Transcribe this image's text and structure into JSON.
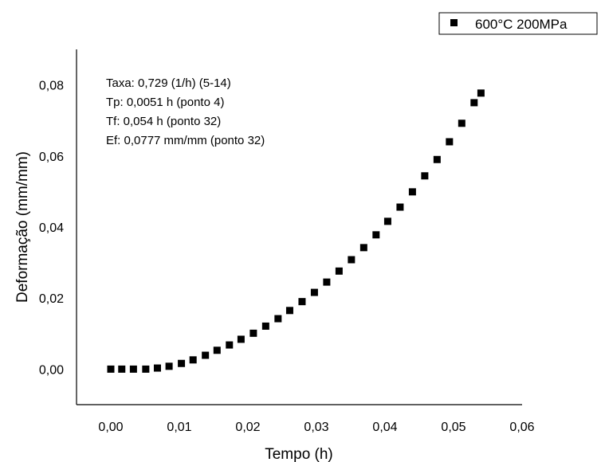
{
  "chart_data": {
    "type": "scatter",
    "title": "",
    "xlabel": "Tempo (h)",
    "ylabel": "Deformação (mm/mm)",
    "xlim": [
      -0.005,
      0.06
    ],
    "ylim": [
      -0.01,
      0.09
    ],
    "xticks": [
      0.0,
      0.01,
      0.02,
      0.03,
      0.04,
      0.05,
      0.06
    ],
    "xtick_labels": [
      "0,00",
      "0,01",
      "0,02",
      "0,03",
      "0,04",
      "0,05",
      "0,06"
    ],
    "yticks": [
      0.0,
      0.02,
      0.04,
      0.06,
      0.08
    ],
    "ytick_labels": [
      "0,00",
      "0,02",
      "0,04",
      "0,06",
      "0,08"
    ],
    "grid": false,
    "legend_position": "top-right",
    "series": [
      {
        "name": "600°C 200MPa",
        "marker": "square",
        "color": "#000000",
        "x": [
          0.0,
          0.0016,
          0.0033,
          0.0051,
          0.0068,
          0.0085,
          0.0103,
          0.012,
          0.0138,
          0.0155,
          0.0173,
          0.019,
          0.0208,
          0.0226,
          0.0244,
          0.0261,
          0.0279,
          0.0297,
          0.0315,
          0.0333,
          0.0351,
          0.0369,
          0.0387,
          0.0404,
          0.0422,
          0.044,
          0.0458,
          0.0476,
          0.0494,
          0.0512,
          0.053,
          0.054
        ],
        "y": [
          0.0,
          0.0,
          0.0,
          0.0,
          0.0003,
          0.0008,
          0.0016,
          0.0026,
          0.0039,
          0.0053,
          0.0068,
          0.0084,
          0.0101,
          0.0121,
          0.0142,
          0.0165,
          0.019,
          0.0216,
          0.0245,
          0.0276,
          0.0308,
          0.0342,
          0.0378,
          0.0416,
          0.0456,
          0.0499,
          0.0544,
          0.059,
          0.064,
          0.0692,
          0.075,
          0.0777
        ]
      }
    ],
    "annotations": [
      "Taxa: 0,729 (1/h) (5-14)",
      "Tp: 0,0051 h (ponto 4)",
      "Tf: 0,054 h (ponto 32)",
      "Ef: 0,0777 mm/mm (ponto 32)"
    ]
  }
}
